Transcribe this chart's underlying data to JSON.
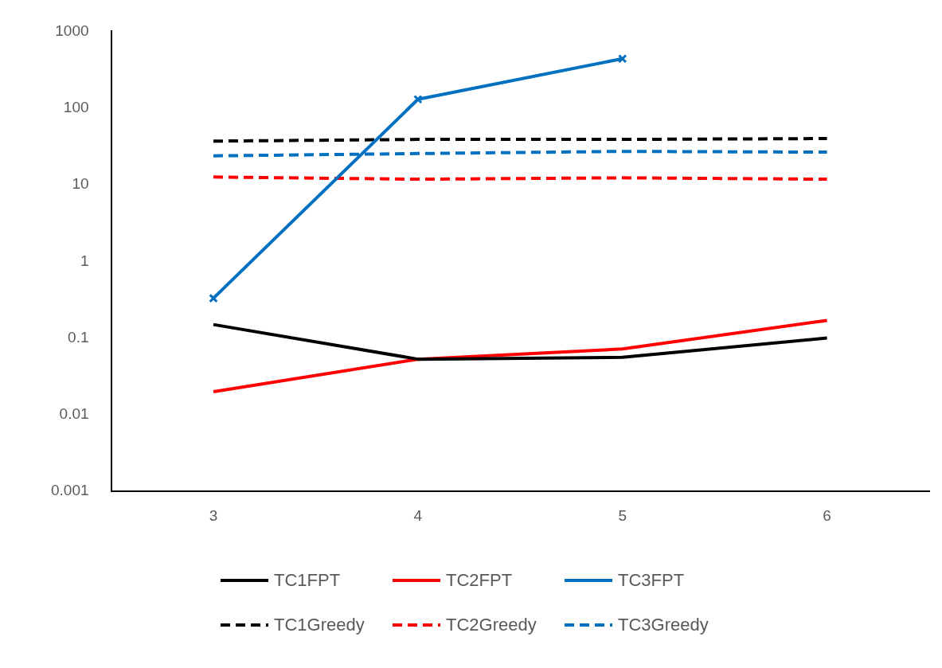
{
  "chart_data": {
    "type": "line",
    "categories": [
      "3",
      "4",
      "5",
      "6"
    ],
    "log": "y",
    "ylim": [
      0.001,
      1000
    ],
    "yticks": [
      {
        "value": 0.001,
        "label": "0.001"
      },
      {
        "value": 0.01,
        "label": "0.01"
      },
      {
        "value": 0.1,
        "label": "0.1"
      },
      {
        "value": 1,
        "label": "1"
      },
      {
        "value": 10,
        "label": "10"
      },
      {
        "value": 100,
        "label": "100"
      },
      {
        "value": 1000,
        "label": "1000"
      }
    ],
    "grid": false,
    "legend": "bottom",
    "marker": "none",
    "series": [
      {
        "name": "TC1FPT",
        "color": "#000000",
        "line_style": "solid",
        "values": [
          0.15,
          0.053,
          0.056,
          0.1
        ]
      },
      {
        "name": "TC2FPT",
        "color": "#ff0000",
        "line_style": "solid",
        "values": [
          0.02,
          0.053,
          0.072,
          0.17
        ]
      },
      {
        "name": "TC3FPT",
        "color": "#0070c0",
        "line_style": "solid",
        "marker": "cross",
        "values": [
          0.33,
          130,
          440,
          null
        ]
      },
      {
        "name": "TC1Greedy",
        "color": "#000000",
        "line_style": "dashed",
        "values": [
          37,
          39,
          39,
          40
        ]
      },
      {
        "name": "TC2Greedy",
        "color": "#ff0000",
        "line_style": "dashed",
        "values": [
          12.6,
          11.8,
          12.3,
          11.8
        ]
      },
      {
        "name": "TC3Greedy",
        "color": "#0070c0",
        "line_style": "dashed",
        "values": [
          23.8,
          25.5,
          27.2,
          26.6
        ]
      }
    ]
  }
}
